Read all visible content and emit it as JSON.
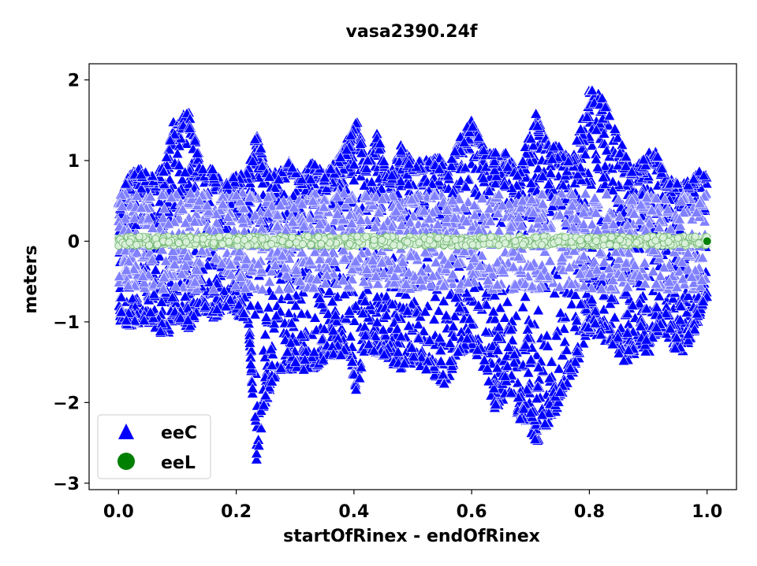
{
  "chart_data": {
    "type": "scatter",
    "title": "vasa2390.24f",
    "xlabel": "startOfRinex - endOfRinex",
    "ylabel": "meters",
    "xlim": [
      -0.05,
      1.05
    ],
    "ylim": [
      -3.08,
      2.2
    ],
    "xticks": [
      0.0,
      0.2,
      0.4,
      0.6,
      0.8,
      1.0
    ],
    "xtick_labels": [
      "0.0",
      "0.2",
      "0.4",
      "0.6",
      "0.8",
      "1.0"
    ],
    "yticks": [
      2,
      1,
      0,
      -1,
      -2,
      -3
    ],
    "ytick_labels": [
      "2",
      "1",
      "0",
      "−1",
      "−2",
      "−3"
    ],
    "grid": false,
    "legend": "lower-left",
    "series": [
      {
        "name": "eeC",
        "marker": "triangle",
        "color": "#0000ff",
        "upper_envelope": {
          "x": [
            0.0,
            0.02,
            0.04,
            0.06,
            0.08,
            0.095,
            0.11,
            0.125,
            0.14,
            0.16,
            0.18,
            0.2,
            0.22,
            0.235,
            0.25,
            0.27,
            0.29,
            0.31,
            0.33,
            0.35,
            0.37,
            0.39,
            0.405,
            0.42,
            0.44,
            0.46,
            0.48,
            0.5,
            0.52,
            0.54,
            0.56,
            0.58,
            0.6,
            0.62,
            0.64,
            0.66,
            0.68,
            0.71,
            0.73,
            0.75,
            0.77,
            0.8,
            0.815,
            0.83,
            0.85,
            0.87,
            0.89,
            0.91,
            0.93,
            0.95,
            0.97,
            0.99,
            1.0
          ],
          "y": [
            0.5,
            0.9,
            0.9,
            0.8,
            1.0,
            1.55,
            1.6,
            1.6,
            0.9,
            0.9,
            0.7,
            0.85,
            0.9,
            1.4,
            0.9,
            0.85,
            1.0,
            0.8,
            1.0,
            0.85,
            1.0,
            1.3,
            1.5,
            1.0,
            1.35,
            0.8,
            1.2,
            1.0,
            1.0,
            1.1,
            0.9,
            1.3,
            1.5,
            1.2,
            1.1,
            1.1,
            0.9,
            1.65,
            1.2,
            1.2,
            1.0,
            1.9,
            1.85,
            1.7,
            1.3,
            0.95,
            1.0,
            1.2,
            0.8,
            0.75,
            0.75,
            0.9,
            0.8
          ]
        },
        "lower_envelope": {
          "x": [
            0.0,
            0.02,
            0.04,
            0.06,
            0.08,
            0.1,
            0.12,
            0.14,
            0.16,
            0.18,
            0.2,
            0.22,
            0.235,
            0.25,
            0.27,
            0.29,
            0.31,
            0.33,
            0.35,
            0.37,
            0.39,
            0.405,
            0.42,
            0.44,
            0.46,
            0.48,
            0.5,
            0.52,
            0.54,
            0.56,
            0.58,
            0.6,
            0.62,
            0.64,
            0.66,
            0.68,
            0.71,
            0.73,
            0.75,
            0.77,
            0.8,
            0.82,
            0.84,
            0.86,
            0.88,
            0.9,
            0.92,
            0.94,
            0.96,
            0.98,
            1.0
          ],
          "y": [
            -1.0,
            -1.05,
            -1.0,
            -1.05,
            -1.2,
            -0.95,
            -1.1,
            -0.8,
            -1.0,
            -0.8,
            -0.9,
            -1.0,
            -2.8,
            -2.0,
            -1.6,
            -1.6,
            -1.6,
            -1.6,
            -1.5,
            -1.4,
            -1.5,
            -1.9,
            -1.3,
            -1.4,
            -1.5,
            -1.6,
            -1.5,
            -1.6,
            -1.7,
            -1.8,
            -1.4,
            -1.3,
            -1.6,
            -2.1,
            -1.9,
            -2.2,
            -2.5,
            -2.3,
            -2.0,
            -1.7,
            -1.1,
            -1.2,
            -1.3,
            -1.5,
            -1.4,
            -1.4,
            -1.1,
            -1.3,
            -1.4,
            -1.1,
            -0.7
          ]
        }
      },
      {
        "name": "eeL",
        "marker": "circle",
        "color": "#008000",
        "x_range": [
          0.0,
          1.0
        ],
        "y_range": [
          -0.06,
          0.06
        ],
        "last_point": {
          "x": 1.0,
          "y": 0.0
        }
      }
    ]
  }
}
